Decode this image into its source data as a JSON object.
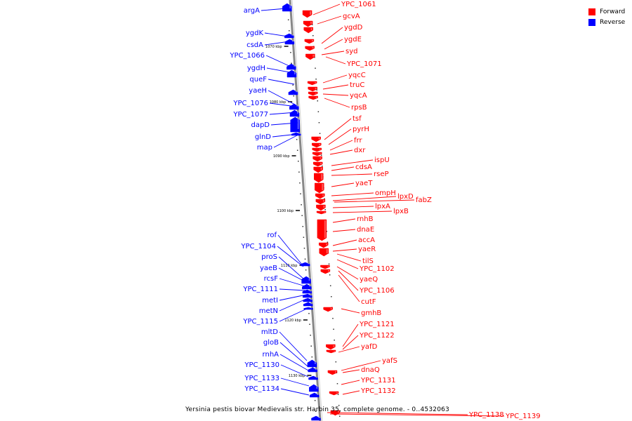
{
  "legend": {
    "forward_label": "Forward",
    "reverse_label": "Reverse",
    "forward_color": "#ff0000",
    "reverse_color": "#0000ff"
  },
  "caption": "Yersinia pestis biovar Medievalis str. Harbin 35, complete genome. - 0..4532063",
  "scale_ticks": [
    "1070 kbp",
    "1080 kbp",
    "1090 kbp",
    "1100 kbp",
    "1110 kbp",
    "1120 kbp",
    "1130 kbp"
  ],
  "reverse_genes": [
    "argA",
    "ygdK",
    "csdA",
    "YPC_1066",
    "ygdH",
    "queF",
    "yaeH",
    "YPC_1076",
    "YPC_1077",
    "dapD",
    "glnD",
    "map",
    "rof",
    "YPC_1104",
    "proS",
    "yaeB",
    "rcsF",
    "YPC_1111",
    "metI",
    "metN",
    "YPC_1115",
    "mltD",
    "gloB",
    "rnhA",
    "YPC_1130",
    "YPC_1133",
    "YPC_1134"
  ],
  "forward_genes": [
    "YPC_1061",
    "gcvA",
    "ygdD",
    "ygdE",
    "syd",
    "YPC_1071",
    "yqcC",
    "truC",
    "yqcA",
    "rpsB",
    "tsf",
    "pyrH",
    "frr",
    "dxr",
    "ispU",
    "cdsA",
    "rseP",
    "yaeT",
    "ompH",
    "lpxD",
    "fabZ",
    "lpxA",
    "lpxB",
    "rnhB",
    "dnaE",
    "accA",
    "yaeR",
    "tilS",
    "YPC_1102",
    "yaeQ",
    "YPC_1106",
    "cutF",
    "gmhB",
    "YPC_1121",
    "YPC_1122",
    "yafD",
    "yafS",
    "dnaQ",
    "YPC_1131",
    "YPC_1132",
    "YPC_1138",
    "YPC_1139"
  ]
}
